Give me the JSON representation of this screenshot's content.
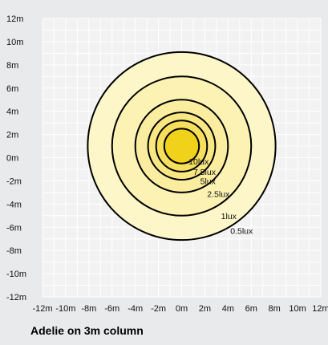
{
  "caption": "Adelie on 3m column",
  "chart_data": {
    "type": "contour",
    "title": "Adelie on 3m column",
    "xlabel": "",
    "ylabel": "",
    "xlim": [
      -12,
      12
    ],
    "ylim": [
      -12,
      12
    ],
    "grid": true,
    "x_ticks": [
      -12,
      -10,
      -8,
      -6,
      -4,
      -2,
      0,
      2,
      4,
      6,
      8,
      10,
      12
    ],
    "y_ticks": [
      12,
      10,
      8,
      6,
      4,
      2,
      0,
      -2,
      -4,
      -6,
      -8,
      -10,
      -12
    ],
    "x_tick_labels": [
      "-12m",
      "-10m",
      "-8m",
      "-6m",
      "-4m",
      "-2m",
      "0m",
      "2m",
      "4m",
      "6m",
      "8m",
      "10m",
      "12m"
    ],
    "y_tick_labels": [
      "12m",
      "10m",
      "8m",
      "6m",
      "4m",
      "2m",
      "0m",
      "-2m",
      "-4m",
      "-6m",
      "-8m",
      "-10m",
      "-12m"
    ],
    "contours": [
      {
        "label": "0.5lux",
        "radius": 8.1,
        "center_y": 1.0,
        "fill": "#fdf6c8"
      },
      {
        "label": "1lux",
        "radius": 6.0,
        "center_y": 1.0,
        "fill": "#fcf2b4"
      },
      {
        "label": "2.5lux",
        "radius": 4.0,
        "center_y": 1.0,
        "fill": "#fbeda0"
      },
      {
        "label": "5lux",
        "radius": 2.9,
        "center_y": 1.0,
        "fill": "#f9e784"
      },
      {
        "label": "7.5lux",
        "radius": 2.2,
        "center_y": 1.0,
        "fill": "#f6df5c"
      },
      {
        "label": "10lux",
        "radius": 1.5,
        "center_y": 1.0,
        "fill": "#f1d21a"
      }
    ],
    "colors": {
      "background": "#e9eaeb",
      "plot_area": "#f2f2f2",
      "grid": "#ffffff",
      "contour_line": "#000000"
    }
  }
}
